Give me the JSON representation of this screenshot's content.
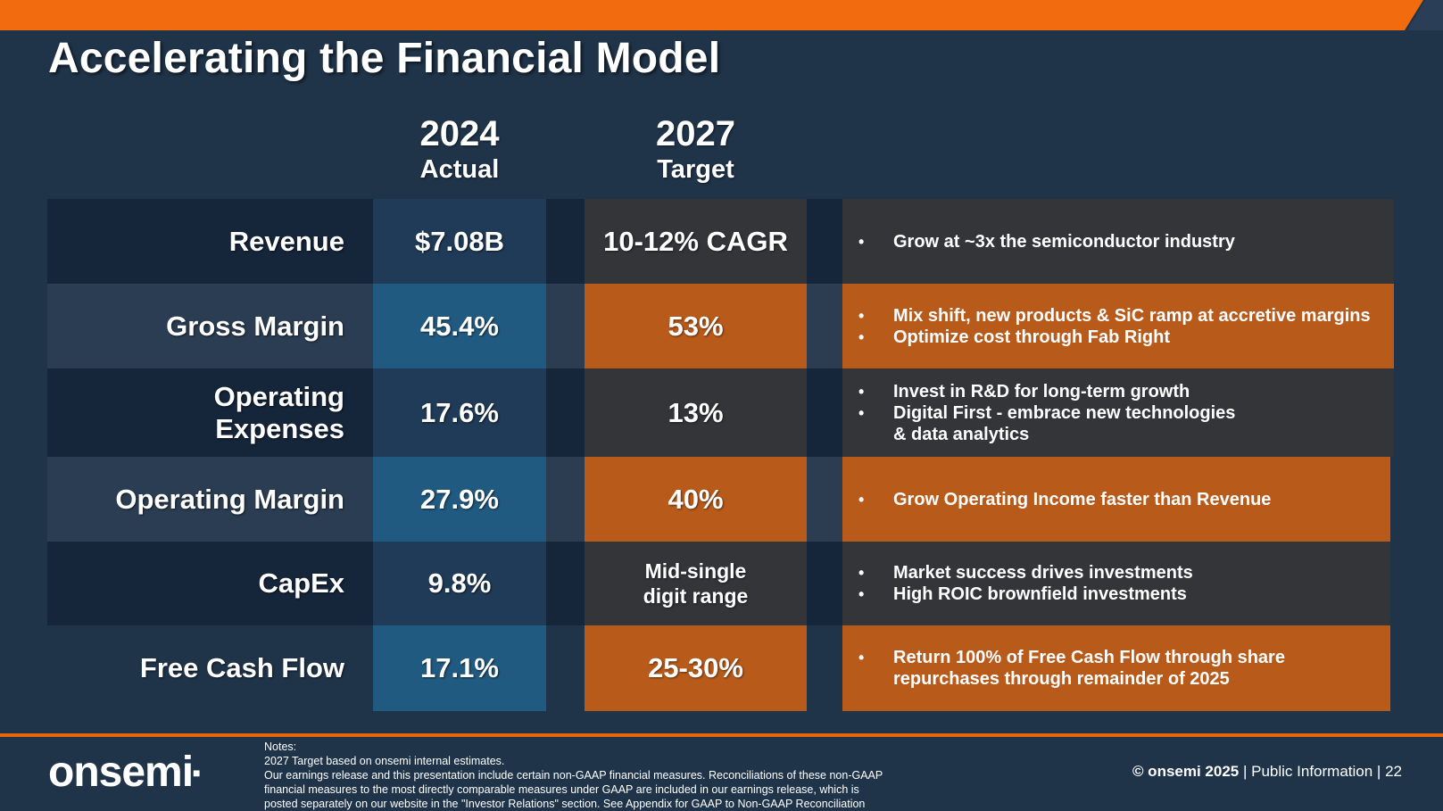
{
  "colors": {
    "accent_orange": "#f26b0f",
    "background_navy": "#1f3349",
    "target_orange": "#b85a1a",
    "actual_blue": "#215a80"
  },
  "title": "Accelerating the Financial Model",
  "columns": {
    "actual": {
      "year": "2024",
      "label": "Actual"
    },
    "target": {
      "year": "2027",
      "label": "Target"
    }
  },
  "rows": [
    {
      "label": "Revenue",
      "actual": "$7.08B",
      "target": "10-12% CAGR",
      "bullets": [
        "Grow at ~3x the semiconductor industry"
      ]
    },
    {
      "label": "Gross Margin",
      "actual": "45.4%",
      "target": "53%",
      "bullets": [
        "Mix shift, new products & SiC ramp at accretive margins",
        "Optimize cost through Fab Right"
      ]
    },
    {
      "label_lines": [
        "Operating",
        "Expenses"
      ],
      "actual": "17.6%",
      "target": "13%",
      "bullets": [
        "Invest in R&D for long-term growth",
        "Digital First - embrace new technologies",
        "& data analytics"
      ]
    },
    {
      "label": "Operating Margin",
      "actual": "27.9%",
      "target": "40%",
      "bullets": [
        "Grow Operating Income faster than Revenue"
      ]
    },
    {
      "label": "CapEx",
      "actual": "9.8%",
      "target_lines": [
        "Mid-single",
        "digit range"
      ],
      "bullets": [
        "Market success drives investments",
        "High ROIC brownfield investments"
      ]
    },
    {
      "label": "Free Cash Flow",
      "actual": "17.1%",
      "target": "25-30%",
      "bullets_lines": [
        "Return 100% of Free Cash Flow through share",
        "repurchases through remainder of 2025"
      ]
    }
  ],
  "footer": {
    "logo_text": "onsemi",
    "notes": [
      "Notes:",
      "2027 Target based on onsemi internal estimates.",
      "Our earnings release and this presentation include certain non-GAAP financial measures. Reconciliations of these non-GAAP",
      "financial measures to the most directly comparable measures under GAAP are included in our earnings release, which is",
      "posted separately on our website in the \"Investor Relations\" section. See Appendix for GAAP to Non-GAAP Reconciliation"
    ],
    "copyright": "© onsemi 2025",
    "classification": "| Public Information |",
    "page_number": "22"
  }
}
